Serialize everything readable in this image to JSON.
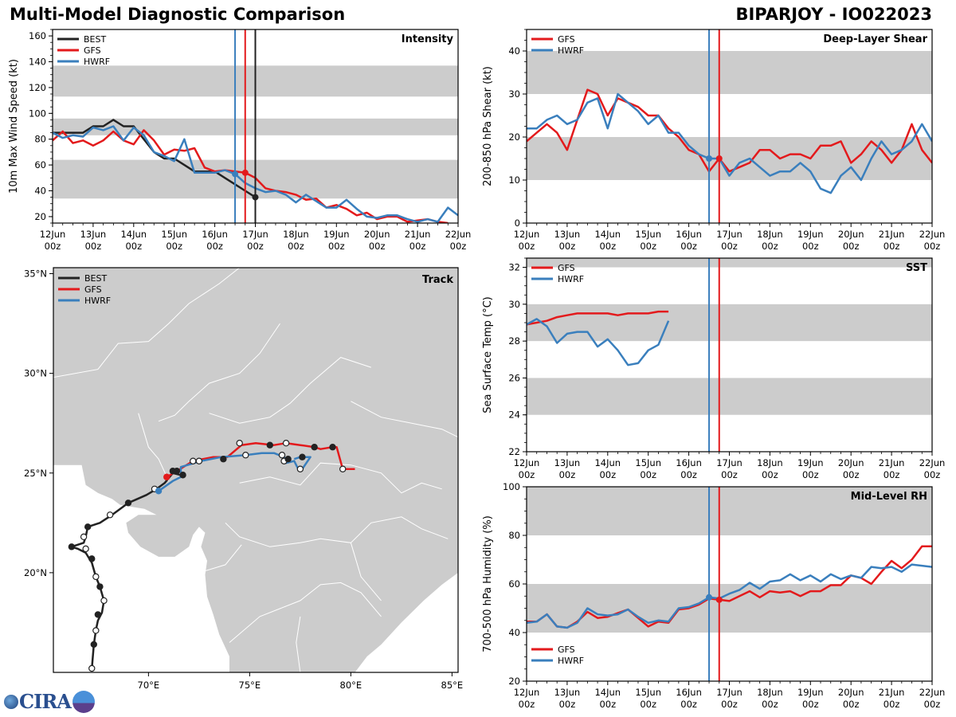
{
  "header": {
    "title": "Multi-Model Diagnostic Comparison",
    "storm": "BIPARJOY - IO022023"
  },
  "colors": {
    "BEST": "#222222",
    "GFS": "#e31a1c",
    "HWRF": "#3a7fbd",
    "band": "#cccccc"
  },
  "logo": {
    "text": "CIRA"
  },
  "chart_data": [
    {
      "id": "intensity",
      "type": "line",
      "title": "Intensity",
      "ylabel": "10m Max Wind Speed (kt)",
      "ylim": [
        15,
        165
      ],
      "yticks": [
        20,
        40,
        60,
        80,
        100,
        120,
        140,
        160
      ],
      "bands": [
        [
          34,
          64
        ],
        [
          83,
          96
        ],
        [
          113,
          137
        ]
      ],
      "xlim_hours": [
        0,
        240
      ],
      "xtick_labels": [
        "12Jun\n00z",
        "13Jun\n00z",
        "14Jun\n00z",
        "15Jun\n00z",
        "16Jun\n00z",
        "17Jun\n00z",
        "18Jun\n00z",
        "19Jun\n00z",
        "20Jun\n00z",
        "21Jun\n00z",
        "22Jun\n00z"
      ],
      "legend": [
        "BEST",
        "GFS",
        "HWRF"
      ],
      "legend_position": "top-left",
      "vlines": [
        {
          "series": "HWRF",
          "hour": 108
        },
        {
          "series": "GFS",
          "hour": 114
        },
        {
          "series": "BEST",
          "hour": 120
        }
      ],
      "series": [
        {
          "name": "BEST",
          "start_hour": 0,
          "step": 6,
          "values": [
            85,
            85,
            85,
            85,
            90,
            90,
            95,
            90,
            90,
            80,
            70,
            65,
            65,
            60,
            55,
            55,
            55,
            50,
            45,
            40,
            35
          ]
        },
        {
          "name": "GFS",
          "start_hour": 0,
          "step": 6,
          "values": [
            79,
            86,
            77,
            79,
            75,
            79,
            86,
            79,
            76,
            87,
            79,
            68,
            72,
            71,
            73,
            58,
            55,
            56,
            55,
            54,
            50,
            42,
            40,
            39,
            37,
            33,
            34,
            27,
            29,
            26,
            21,
            23,
            18,
            20,
            20,
            16,
            17,
            18,
            16,
            15
          ]
        },
        {
          "name": "HWRF",
          "start_hour": 0,
          "step": 6,
          "values": [
            85,
            81,
            83,
            82,
            89,
            87,
            90,
            79,
            89,
            83,
            70,
            67,
            63,
            80,
            54,
            54,
            54,
            56,
            53,
            46,
            42,
            39,
            40,
            37,
            31,
            37,
            32,
            27,
            27,
            33,
            26,
            20,
            19,
            21,
            21,
            18,
            16,
            18,
            16,
            27,
            21
          ]
        }
      ]
    },
    {
      "id": "shear",
      "type": "line",
      "title": "Deep-Layer Shear",
      "ylabel": "200-850 hPa Shear (kt)",
      "ylim": [
        0,
        45
      ],
      "yticks": [
        0,
        10,
        20,
        30,
        40
      ],
      "bands": [
        [
          10,
          20
        ],
        [
          30,
          40
        ]
      ],
      "xlim_hours": [
        0,
        240
      ],
      "legend": [
        "GFS",
        "HWRF"
      ],
      "legend_position": "top-left",
      "vlines": [
        {
          "series": "HWRF",
          "hour": 108
        },
        {
          "series": "GFS",
          "hour": 114
        }
      ],
      "series": [
        {
          "name": "GFS",
          "start_hour": 0,
          "step": 6,
          "values": [
            19,
            21,
            23,
            21,
            17,
            24,
            31,
            30,
            25,
            29,
            28,
            27,
            25,
            25,
            22,
            20,
            17,
            16,
            12,
            15,
            12,
            13,
            14,
            17,
            17,
            15,
            16,
            16,
            15,
            18,
            18,
            19,
            14,
            16,
            19,
            17,
            14,
            17,
            23,
            17,
            14
          ]
        },
        {
          "name": "HWRF",
          "start_hour": 0,
          "step": 6,
          "values": [
            22,
            22,
            24,
            25,
            23,
            24,
            28,
            29,
            22,
            30,
            28,
            26,
            23,
            25,
            21,
            21,
            18,
            16,
            15,
            15,
            11,
            14,
            15,
            13,
            11,
            12,
            12,
            14,
            12,
            8,
            7,
            11,
            13,
            10,
            15,
            19,
            16,
            17,
            19,
            23,
            19
          ]
        }
      ]
    },
    {
      "id": "sst",
      "type": "line",
      "title": "SST",
      "ylabel": "Sea Surface Temp (°C)",
      "ylim": [
        22,
        32.5
      ],
      "yticks": [
        22,
        24,
        26,
        28,
        30,
        32
      ],
      "bands": [
        [
          24,
          26
        ],
        [
          28,
          30
        ],
        [
          32,
          33
        ]
      ],
      "xlim_hours": [
        0,
        240
      ],
      "legend": [
        "GFS",
        "HWRF"
      ],
      "legend_position": "top-left",
      "vlines": [
        {
          "series": "HWRF",
          "hour": 108
        },
        {
          "series": "GFS",
          "hour": 114
        }
      ],
      "series": [
        {
          "name": "GFS",
          "start_hour": 0,
          "step": 6,
          "values": [
            28.9,
            29.0,
            29.1,
            29.3,
            29.4,
            29.5,
            29.5,
            29.5,
            29.5,
            29.4,
            29.5,
            29.5,
            29.5,
            29.6,
            29.6
          ]
        },
        {
          "name": "HWRF",
          "start_hour": 0,
          "step": 6,
          "values": [
            28.9,
            29.2,
            28.8,
            27.9,
            28.4,
            28.5,
            28.5,
            27.7,
            28.1,
            27.5,
            26.7,
            26.8,
            27.5,
            27.8,
            29.1
          ]
        }
      ]
    },
    {
      "id": "rh",
      "type": "line",
      "title": "Mid-Level RH",
      "ylabel": "700-500 hPa Humidity (%)",
      "ylim": [
        20,
        100
      ],
      "yticks": [
        20,
        40,
        60,
        80,
        100
      ],
      "bands": [
        [
          40,
          60
        ],
        [
          80,
          100
        ]
      ],
      "xlim_hours": [
        0,
        240
      ],
      "legend": [
        "GFS",
        "HWRF"
      ],
      "legend_position": "bottom-left",
      "vlines": [
        {
          "series": "HWRF",
          "hour": 108
        },
        {
          "series": "GFS",
          "hour": 114
        }
      ],
      "series": [
        {
          "name": "GFS",
          "start_hour": 0,
          "step": 6,
          "values": [
            44.5,
            44.5,
            47.5,
            42.5,
            42,
            44.5,
            48.5,
            46,
            46.5,
            48,
            49.5,
            46,
            42.5,
            44.5,
            44,
            49.5,
            50,
            51.5,
            54,
            53.5,
            53,
            55,
            57,
            54.5,
            57,
            56.5,
            57,
            55,
            57,
            57,
            59.5,
            59.5,
            63.5,
            62.5,
            60,
            65,
            69.5,
            66.5,
            70,
            75.5,
            75.5
          ]
        },
        {
          "name": "HWRF",
          "start_hour": 0,
          "step": 6,
          "values": [
            44,
            44.5,
            47.5,
            42.5,
            42,
            44,
            50,
            47.5,
            47,
            47.5,
            49.5,
            46.5,
            44,
            45,
            44.5,
            50,
            50.5,
            52,
            54.5,
            54,
            56,
            57.5,
            60.5,
            58,
            61,
            61.5,
            64,
            61.5,
            63.5,
            61,
            64,
            62,
            63.5,
            62.5,
            67,
            66.5,
            67,
            65,
            68,
            67.5,
            67
          ]
        }
      ]
    },
    {
      "id": "track",
      "type": "scatter",
      "title": "Track",
      "lon_range": [
        65.3,
        85.3
      ],
      "lat_range": [
        15.0,
        35.3
      ],
      "xtick_labels": [
        "70°E",
        "75°E",
        "80°E",
        "85°E"
      ],
      "ytick_labels": [
        "20°N",
        "25°N",
        "30°N",
        "35°N"
      ],
      "legend": [
        "BEST",
        "GFS",
        "HWRF"
      ],
      "legend_position": "top-left",
      "series": [
        {
          "name": "BEST",
          "points": [
            [
              67.2,
              15.2
            ],
            [
              67.3,
              16.4
            ],
            [
              67.4,
              17.1
            ],
            [
              67.5,
              17.6
            ],
            [
              67.7,
              18.0
            ],
            [
              67.8,
              18.6
            ],
            [
              67.6,
              19.3
            ],
            [
              67.4,
              19.8
            ],
            [
              67.2,
              20.5
            ],
            [
              66.9,
              21.0
            ],
            [
              66.5,
              21.2
            ],
            [
              66.2,
              21.3
            ],
            [
              66.8,
              21.5
            ],
            [
              66.9,
              21.8
            ],
            [
              67.0,
              22.3
            ],
            [
              67.6,
              22.5
            ],
            [
              68.2,
              22.9
            ],
            [
              69.0,
              23.5
            ],
            [
              69.9,
              23.9
            ],
            [
              70.4,
              24.2
            ],
            [
              70.8,
              24.5
            ],
            [
              71.2,
              25.0
            ],
            [
              71.6,
              24.9
            ]
          ],
          "markers": [
            {
              "lon": 67.2,
              "lat": 15.2,
              "fill": "white"
            },
            {
              "lon": 67.3,
              "lat": 16.4,
              "fill": "black"
            },
            {
              "lon": 67.4,
              "lat": 17.1,
              "fill": "white"
            },
            {
              "lon": 67.5,
              "lat": 17.9,
              "fill": "black"
            },
            {
              "lon": 67.8,
              "lat": 18.6,
              "fill": "white"
            },
            {
              "lon": 67.6,
              "lat": 19.3,
              "fill": "black"
            },
            {
              "lon": 67.4,
              "lat": 19.8,
              "fill": "white"
            },
            {
              "lon": 67.2,
              "lat": 20.7,
              "fill": "black"
            },
            {
              "lon": 66.9,
              "lat": 21.2,
              "fill": "white"
            },
            {
              "lon": 66.2,
              "lat": 21.3,
              "fill": "black"
            },
            {
              "lon": 66.8,
              "lat": 21.8,
              "fill": "white"
            },
            {
              "lon": 67.0,
              "lat": 22.3,
              "fill": "black"
            },
            {
              "lon": 68.1,
              "lat": 22.9,
              "fill": "white"
            },
            {
              "lon": 69.0,
              "lat": 23.5,
              "fill": "black"
            },
            {
              "lon": 70.3,
              "lat": 24.2,
              "fill": "white"
            },
            {
              "lon": 71.2,
              "lat": 25.1,
              "fill": "black"
            },
            {
              "lon": 71.7,
              "lat": 24.9,
              "fill": "black"
            }
          ]
        },
        {
          "name": "GFS",
          "points": [
            [
              70.9,
              24.8
            ],
            [
              71.4,
              25.1
            ],
            [
              72.2,
              25.6
            ],
            [
              73.2,
              25.8
            ],
            [
              73.9,
              25.8
            ],
            [
              74.6,
              26.4
            ],
            [
              75.3,
              26.5
            ],
            [
              76.2,
              26.4
            ],
            [
              76.8,
              26.5
            ],
            [
              77.5,
              26.4
            ],
            [
              78.2,
              26.3
            ],
            [
              78.5,
              26.2
            ],
            [
              79.1,
              26.3
            ],
            [
              79.3,
              26.3
            ],
            [
              79.6,
              25.2
            ],
            [
              80.2,
              25.2
            ]
          ],
          "markers": [
            {
              "lon": 70.9,
              "lat": 24.8,
              "fill": "red"
            },
            {
              "lon": 71.4,
              "lat": 25.1,
              "fill": "black"
            },
            {
              "lon": 72.2,
              "lat": 25.6,
              "fill": "white"
            },
            {
              "lon": 74.5,
              "lat": 26.5,
              "fill": "white"
            },
            {
              "lon": 76.0,
              "lat": 26.4,
              "fill": "black"
            },
            {
              "lon": 76.8,
              "lat": 26.5,
              "fill": "white"
            },
            {
              "lon": 78.2,
              "lat": 26.3,
              "fill": "black"
            },
            {
              "lon": 79.1,
              "lat": 26.3,
              "fill": "black"
            },
            {
              "lon": 79.6,
              "lat": 25.2,
              "fill": "white"
            }
          ]
        },
        {
          "name": "HWRF",
          "points": [
            [
              70.5,
              24.1
            ],
            [
              71.2,
              24.6
            ],
            [
              71.6,
              24.8
            ],
            [
              71.6,
              25.3
            ],
            [
              72.6,
              25.6
            ],
            [
              73.6,
              25.8
            ],
            [
              74.8,
              25.9
            ],
            [
              75.6,
              26.0
            ],
            [
              76.2,
              26.0
            ],
            [
              76.7,
              25.8
            ],
            [
              76.8,
              25.5
            ],
            [
              77.2,
              25.6
            ],
            [
              77.4,
              25.2
            ],
            [
              77.6,
              25.2
            ],
            [
              78.0,
              25.8
            ],
            [
              77.5,
              25.8
            ],
            [
              77.2,
              25.7
            ]
          ],
          "markers": [
            {
              "lon": 70.5,
              "lat": 24.1,
              "fill": "blue"
            },
            {
              "lon": 72.5,
              "lat": 25.6,
              "fill": "white"
            },
            {
              "lon": 74.8,
              "lat": 25.9,
              "fill": "white"
            },
            {
              "lon": 76.6,
              "lat": 25.9,
              "fill": "white"
            },
            {
              "lon": 76.7,
              "lat": 25.6,
              "fill": "white"
            },
            {
              "lon": 76.9,
              "lat": 25.7,
              "fill": "black"
            },
            {
              "lon": 77.5,
              "lat": 25.2,
              "fill": "white"
            },
            {
              "lon": 77.6,
              "lat": 25.8,
              "fill": "black"
            },
            {
              "lon": 73.7,
              "lat": 25.7,
              "fill": "black"
            }
          ]
        }
      ]
    }
  ]
}
